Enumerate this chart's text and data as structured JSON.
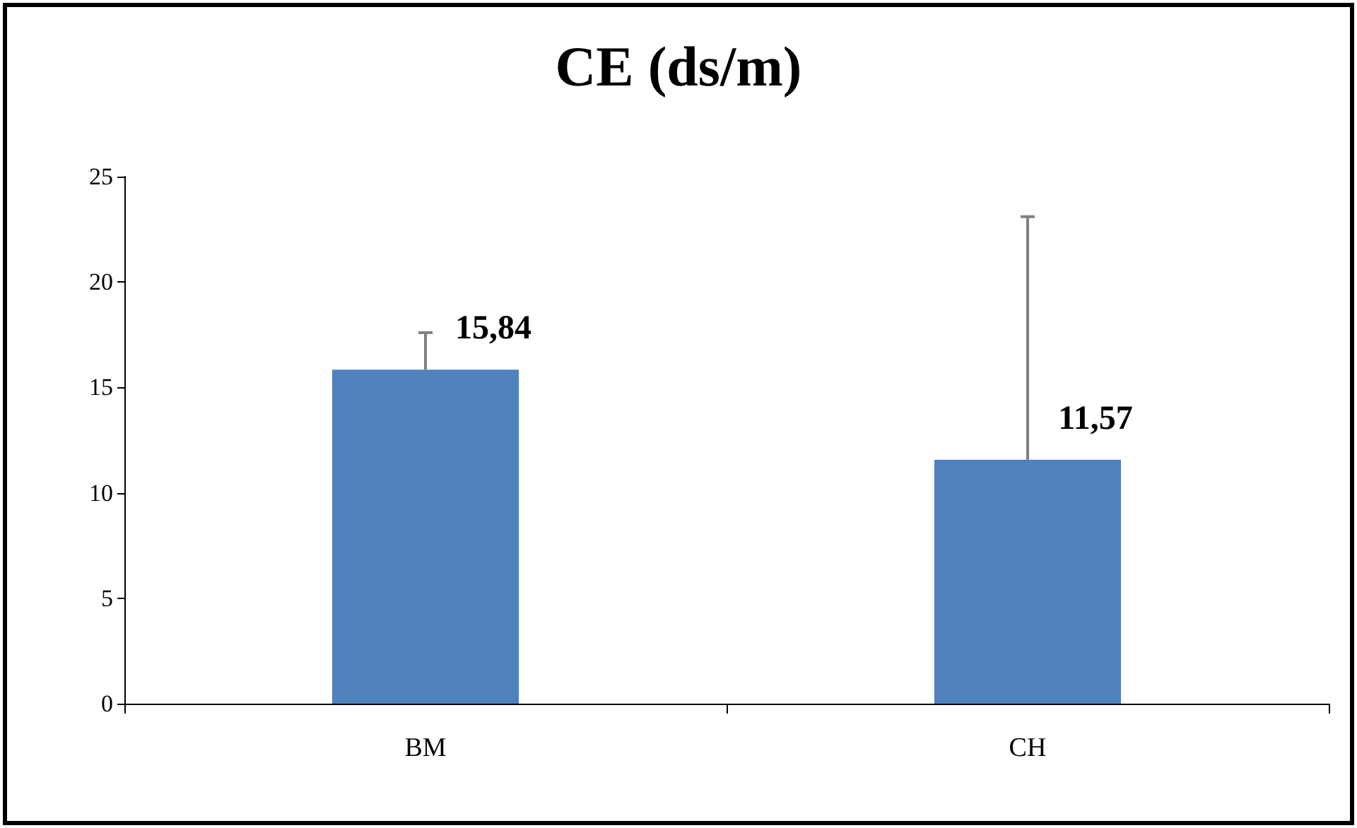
{
  "chart_data": {
    "type": "bar",
    "title": "CE (ds/m)",
    "categories": [
      "BM",
      "CH"
    ],
    "values": [
      15.84,
      11.57
    ],
    "value_labels": [
      "15,84",
      "11,57"
    ],
    "errors": [
      [
        15.84,
        17.6
      ],
      [
        11.57,
        23.1
      ]
    ],
    "color": "#4f81bd",
    "ylim": [
      0,
      25
    ],
    "yticks": [
      0,
      5,
      10,
      15,
      20,
      25
    ]
  }
}
